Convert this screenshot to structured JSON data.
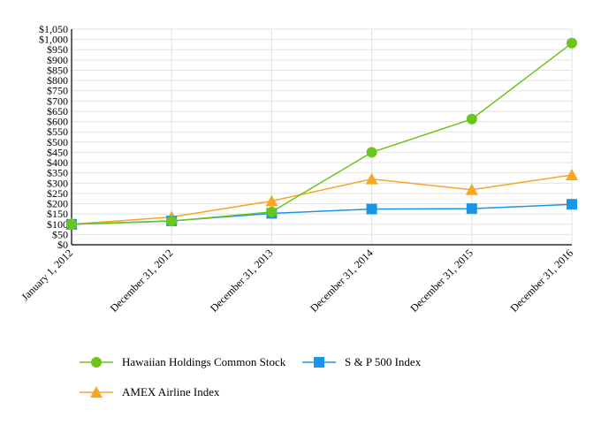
{
  "chart_data": {
    "type": "line",
    "categories": [
      "January 1, 2012",
      "December 31, 2012",
      "December 31, 2013",
      "December 31, 2014",
      "December 31, 2015",
      "December 31, 2016"
    ],
    "ylim": [
      0,
      1050
    ],
    "ytick_step": 50,
    "y_tick_prefix": "$",
    "grid": true,
    "legend_position": "bottom",
    "series": [
      {
        "name": "Hawaiian Holdings Common Stock",
        "marker": "circle",
        "color": "#6cc51c",
        "values": [
          100,
          115,
          160,
          450,
          612,
          982
        ]
      },
      {
        "name": "S & P 500 Index",
        "marker": "square",
        "color": "#1a96e8",
        "values": [
          100,
          116,
          153,
          174,
          176,
          197
        ]
      },
      {
        "name": "AMEX Airline Index",
        "marker": "triangle",
        "color": "#f5a623",
        "values": [
          100,
          135,
          213,
          320,
          268,
          340
        ]
      }
    ]
  }
}
